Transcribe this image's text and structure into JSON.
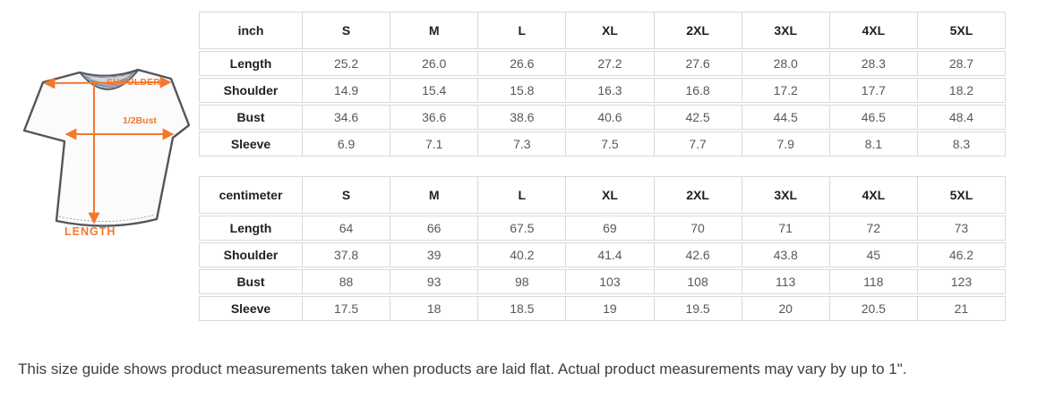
{
  "diagram": {
    "labels": {
      "shoulder": "SHOULDER",
      "half_bust": "1/2Bust",
      "length": "LENGTH"
    },
    "colors": {
      "accent_orange": "#F4772E",
      "outline": "#52565C",
      "collar": "#9BA3B1"
    }
  },
  "tables": [
    {
      "unit_label": "inch",
      "size_headers": [
        "S",
        "M",
        "L",
        "XL",
        "2XL",
        "3XL",
        "4XL",
        "5XL"
      ],
      "rows": [
        {
          "label": "Length",
          "values": [
            "25.2",
            "26.0",
            "26.6",
            "27.2",
            "27.6",
            "28.0",
            "28.3",
            "28.7"
          ]
        },
        {
          "label": "Shoulder",
          "values": [
            "14.9",
            "15.4",
            "15.8",
            "16.3",
            "16.8",
            "17.2",
            "17.7",
            "18.2"
          ]
        },
        {
          "label": "Bust",
          "values": [
            "34.6",
            "36.6",
            "38.6",
            "40.6",
            "42.5",
            "44.5",
            "46.5",
            "48.4"
          ]
        },
        {
          "label": "Sleeve",
          "values": [
            "6.9",
            "7.1",
            "7.3",
            "7.5",
            "7.7",
            "7.9",
            "8.1",
            "8.3"
          ]
        }
      ]
    },
    {
      "unit_label": "centimeter",
      "size_headers": [
        "S",
        "M",
        "L",
        "XL",
        "2XL",
        "3XL",
        "4XL",
        "5XL"
      ],
      "rows": [
        {
          "label": "Length",
          "values": [
            "64",
            "66",
            "67.5",
            "69",
            "70",
            "71",
            "72",
            "73"
          ]
        },
        {
          "label": "Shoulder",
          "values": [
            "37.8",
            "39",
            "40.2",
            "41.4",
            "42.6",
            "43.8",
            "45",
            "46.2"
          ]
        },
        {
          "label": "Bust",
          "values": [
            "88",
            "93",
            "98",
            "103",
            "108",
            "113",
            "118",
            "123"
          ]
        },
        {
          "label": "Sleeve",
          "values": [
            "17.5",
            "18",
            "18.5",
            "19",
            "19.5",
            "20",
            "20.5",
            "21"
          ]
        }
      ]
    }
  ],
  "caption": "This size guide shows product measurements taken when products are laid flat. Actual product measurements may vary by up to 1\"."
}
